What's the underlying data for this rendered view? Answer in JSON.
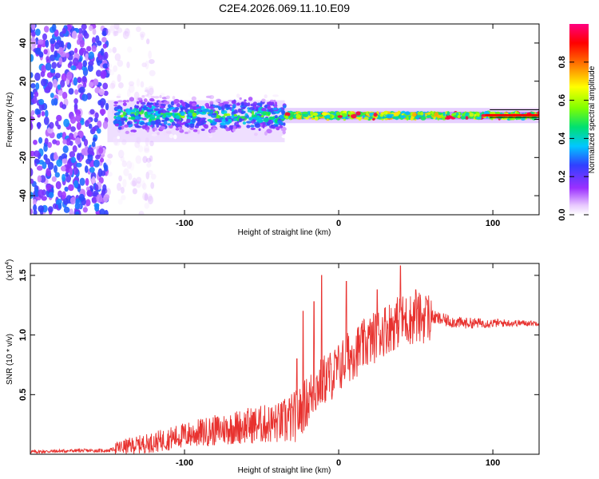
{
  "title": "C2E4.2026.069.11.10.E09",
  "chart_data": [
    {
      "type": "heatmap",
      "name": "spectrogram",
      "xlabel": "Height of straight line (km)",
      "ylabel": "Frequency (Hz)",
      "xlim": [
        -200,
        130
      ],
      "ylim": [
        -50,
        50
      ],
      "xticks": [
        -100,
        0,
        100
      ],
      "xtick_labels": [
        "-100",
        "0",
        "100"
      ],
      "yticks": [
        -40,
        -20,
        0,
        20,
        40
      ],
      "ytick_labels": [
        "-40",
        "-20",
        "0",
        "20",
        "40"
      ],
      "colorbar": {
        "label": "Normalized spectral amplitude",
        "range": [
          0,
          1
        ],
        "ticks": [
          0.0,
          0.2,
          0.4,
          0.6,
          0.8
        ],
        "tick_labels": [
          "0.0",
          "0.2",
          "0.4",
          "0.6",
          "0.8"
        ],
        "colors": [
          "#ffffff",
          "#9b30ff",
          "#3040ff",
          "#00c8ff",
          "#00e070",
          "#80ff00",
          "#ffff00",
          "#ff8000",
          "#ff0000",
          "#ff0080"
        ]
      },
      "regions": [
        {
          "x_from": -200,
          "x_to": -150,
          "freq_spread": 50,
          "amplitude": 0.2,
          "description": "broadband noise"
        },
        {
          "x_from": -150,
          "x_to": -120,
          "freq_spread": 50,
          "amplitude": 0.05
        },
        {
          "x_from": -145,
          "x_to": -35,
          "freq_spread": 10,
          "amplitude": 0.4
        },
        {
          "x_from": -35,
          "x_to": 130,
          "freq_spread": 3,
          "amplitude": 0.6
        }
      ],
      "line_center_hz": 2
    },
    {
      "type": "line",
      "name": "snr",
      "xlabel": "Height of straight line (km)",
      "ylabel": "SNR (10 * v/v)",
      "y_multiplier": "(x10",
      "y_multiplier_exp": "4",
      "xlim": [
        -200,
        130
      ],
      "ylim": [
        0.0,
        1.6
      ],
      "xticks": [
        -100,
        0,
        100
      ],
      "xtick_labels": [
        "-100",
        "0",
        "100"
      ],
      "yticks": [
        0.5,
        1.0,
        1.5
      ],
      "ytick_labels": [
        "0.5",
        "1.0",
        "1.5"
      ],
      "color": "#e8322f",
      "envelope": {
        "x": [
          -200,
          -170,
          -150,
          -140,
          -120,
          -100,
          -80,
          -60,
          -40,
          -30,
          -25,
          -20,
          -15,
          -10,
          -5,
          0,
          5,
          10,
          20,
          30,
          40,
          50,
          60,
          70,
          80,
          100,
          130
        ],
        "y": [
          0.02,
          0.03,
          0.03,
          0.06,
          0.1,
          0.16,
          0.2,
          0.24,
          0.26,
          0.3,
          0.35,
          0.45,
          0.55,
          0.62,
          0.66,
          0.72,
          0.8,
          0.85,
          0.95,
          1.05,
          1.12,
          1.14,
          1.15,
          1.12,
          1.1,
          1.1,
          1.1
        ]
      },
      "spikes": [
        {
          "x": -11,
          "y": 1.5
        },
        {
          "x": -23,
          "y": 1.2
        },
        {
          "x": -16,
          "y": 1.28
        },
        {
          "x": -27,
          "y": 0.8
        },
        {
          "x": 5,
          "y": 1.45
        },
        {
          "x": 10,
          "y": 0.88
        },
        {
          "x": 40,
          "y": 1.58
        },
        {
          "x": 25,
          "y": 1.38
        },
        {
          "x": 50,
          "y": 1.38
        },
        {
          "x": 57,
          "y": 1.3
        }
      ]
    }
  ]
}
